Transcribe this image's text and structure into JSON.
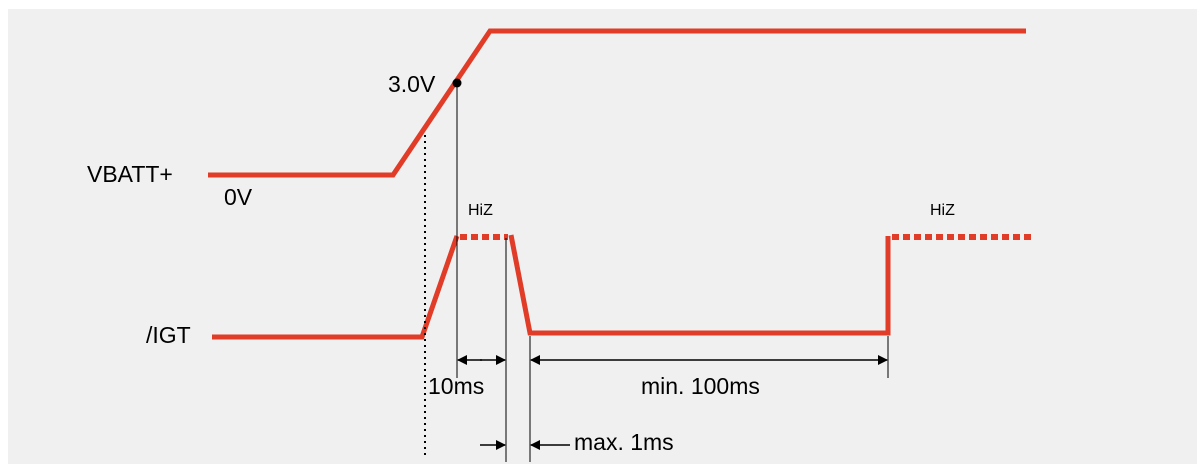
{
  "colors": {
    "background": "#f0f0f0",
    "signal": "#e03c28",
    "annotation": "#000000"
  },
  "signals": {
    "vbatt_label": "VBATT+",
    "igt_label": "/IGT"
  },
  "levels": {
    "zero_volt": "0V",
    "threshold": "3.0V",
    "hiz_first": "HiZ",
    "hiz_second": "HiZ"
  },
  "timing": {
    "delay": "10ms",
    "low_pulse": "min. 100ms",
    "fall_time": "max. 1ms"
  }
}
